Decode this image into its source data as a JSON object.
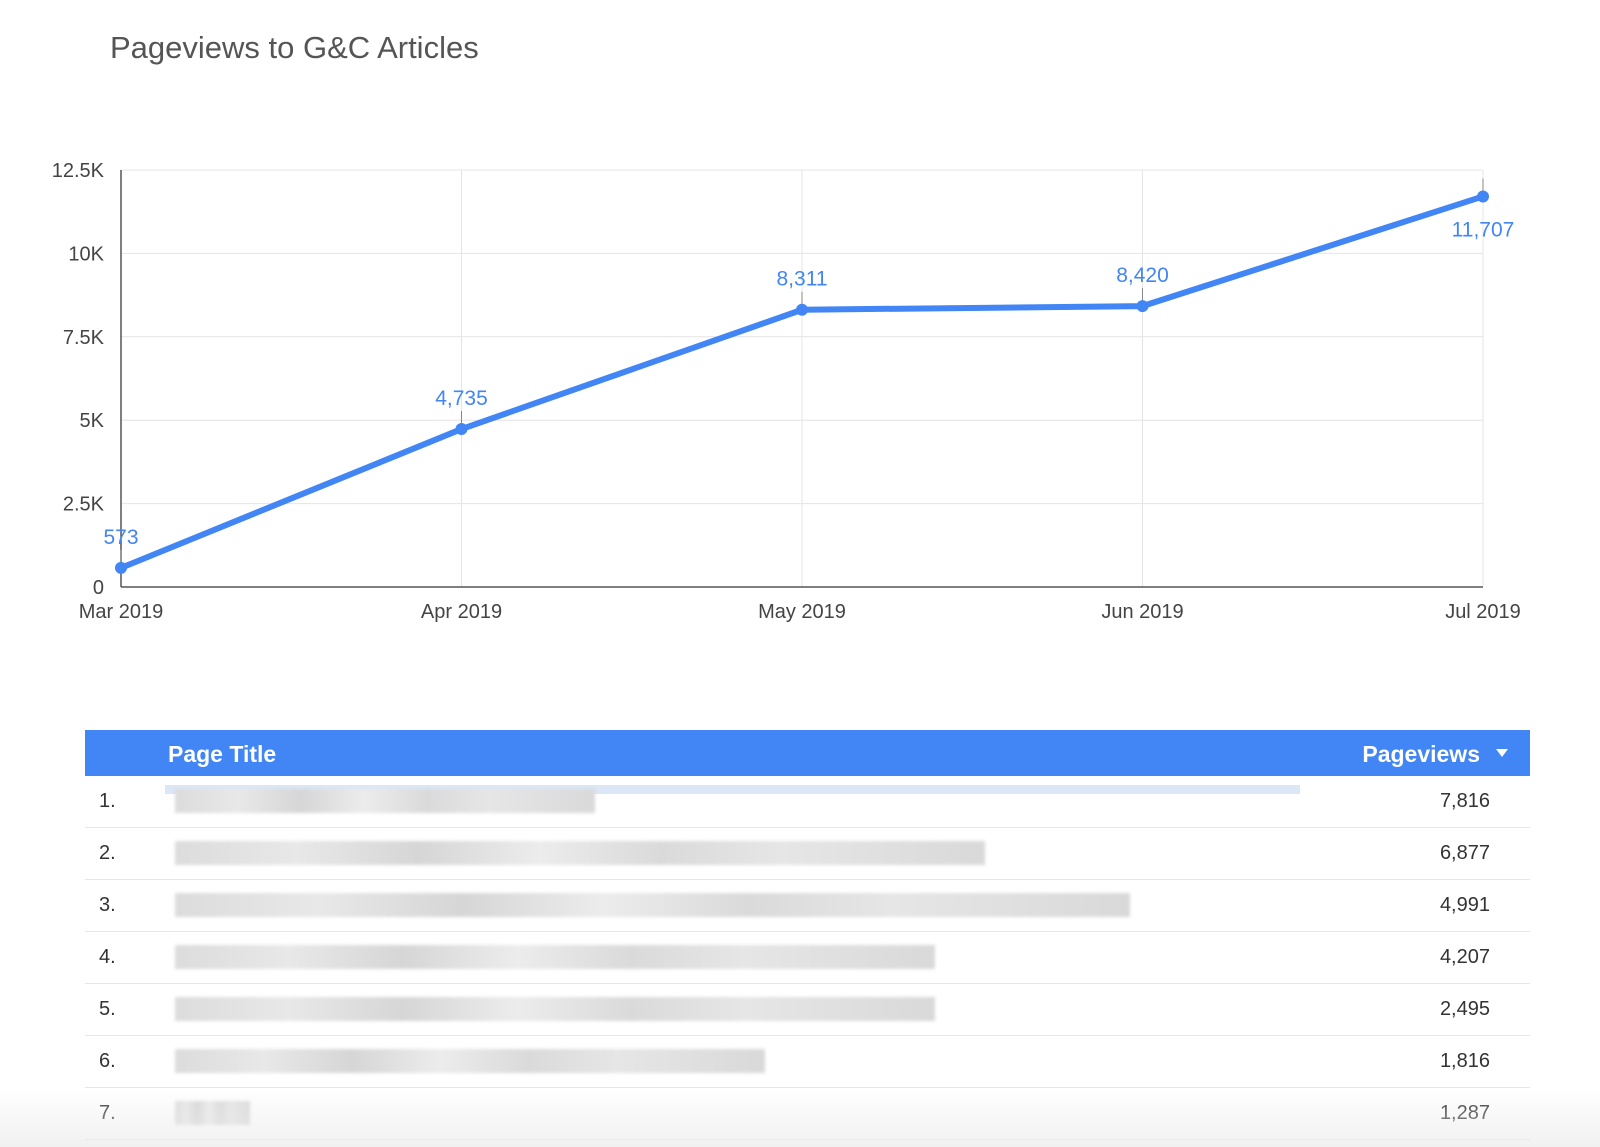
{
  "chart_data": {
    "type": "line",
    "title": "Pageviews to G&C Articles",
    "categories": [
      "Mar 2019",
      "Apr 2019",
      "May 2019",
      "Jun 2019",
      "Jul 2019"
    ],
    "series": [
      {
        "values": [
          573,
          4735,
          8311,
          8420,
          11707
        ],
        "labels": [
          "573",
          "4,735",
          "8,311",
          "8,420",
          "11,707"
        ]
      }
    ],
    "y_ticks": [
      "0",
      "2.5K",
      "5K",
      "7.5K",
      "10K",
      "12.5K"
    ],
    "ylim": [
      0,
      12500
    ],
    "grid": true,
    "line_color": "#4285f4"
  },
  "table": {
    "headers": {
      "title": "Page Title",
      "views": "Pageviews"
    },
    "header_color": "#4285f4",
    "rows": [
      {
        "rank": "1.",
        "views": "7,816",
        "bar_fraction": 1.0
      },
      {
        "rank": "2.",
        "views": "6,877",
        "bar_fraction": 0.88
      },
      {
        "rank": "3.",
        "views": "4,991",
        "bar_fraction": 0.64
      },
      {
        "rank": "4.",
        "views": "4,207",
        "bar_fraction": 0.54
      },
      {
        "rank": "5.",
        "views": "2,495",
        "bar_fraction": 0.32
      },
      {
        "rank": "6.",
        "views": "1,816",
        "bar_fraction": 0.23
      },
      {
        "rank": "7.",
        "views": "1,287",
        "bar_fraction": 0.16
      }
    ]
  }
}
